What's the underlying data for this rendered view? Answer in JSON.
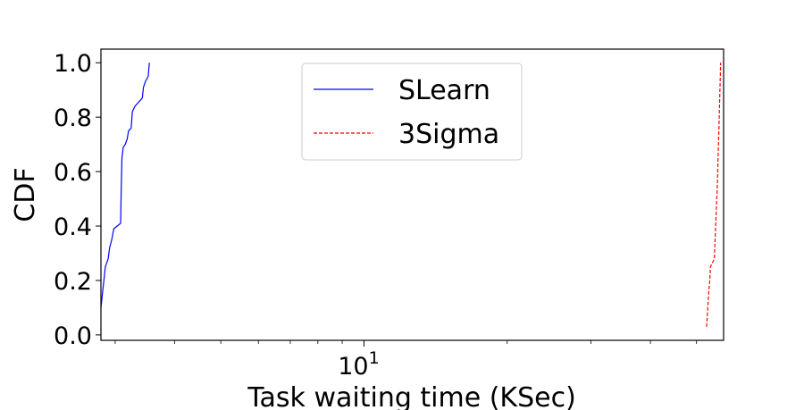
{
  "chart_data": {
    "type": "line",
    "title": "",
    "xlabel": "Task waiting time (KSec)",
    "ylabel": "CDF",
    "xscale": "log",
    "xlim": [
      2.8,
      57
    ],
    "ylim": [
      -0.02,
      1.05
    ],
    "x_ticks": [
      {
        "value": 10,
        "base": "10",
        "exp": "1"
      }
    ],
    "y_ticks": [
      {
        "value": 0.0,
        "label": "0.0"
      },
      {
        "value": 0.2,
        "label": "0.2"
      },
      {
        "value": 0.4,
        "label": "0.4"
      },
      {
        "value": 0.6,
        "label": "0.6"
      },
      {
        "value": 0.8,
        "label": "0.8"
      },
      {
        "value": 1.0,
        "label": "1.0"
      }
    ],
    "grid": false,
    "legend_position": "upper center",
    "series": [
      {
        "name": "SLearn",
        "color": "#0000ff",
        "style": "solid",
        "points": [
          [
            2.8,
            0.1
          ],
          [
            2.82,
            0.15
          ],
          [
            2.84,
            0.2
          ],
          [
            2.86,
            0.25
          ],
          [
            2.9,
            0.28
          ],
          [
            2.92,
            0.32
          ],
          [
            2.95,
            0.35
          ],
          [
            2.98,
            0.39
          ],
          [
            3.03,
            0.4
          ],
          [
            3.08,
            0.41
          ],
          [
            3.09,
            0.55
          ],
          [
            3.1,
            0.65
          ],
          [
            3.12,
            0.69
          ],
          [
            3.15,
            0.7
          ],
          [
            3.18,
            0.72
          ],
          [
            3.2,
            0.75
          ],
          [
            3.24,
            0.76
          ],
          [
            3.26,
            0.82
          ],
          [
            3.3,
            0.84
          ],
          [
            3.34,
            0.85
          ],
          [
            3.38,
            0.86
          ],
          [
            3.42,
            0.87
          ],
          [
            3.44,
            0.91
          ],
          [
            3.47,
            0.93
          ],
          [
            3.52,
            0.95
          ],
          [
            3.54,
            1.0
          ]
        ]
      },
      {
        "name": "3Sigma",
        "color": "#ff0000",
        "style": "dashed",
        "points": [
          [
            52.5,
            0.03
          ],
          [
            52.8,
            0.1
          ],
          [
            53.0,
            0.15
          ],
          [
            53.3,
            0.2
          ],
          [
            53.5,
            0.25
          ],
          [
            53.8,
            0.26
          ],
          [
            54.2,
            0.27
          ],
          [
            54.5,
            0.28
          ],
          [
            54.7,
            0.35
          ],
          [
            55.0,
            0.45
          ],
          [
            55.3,
            0.55
          ],
          [
            55.5,
            0.65
          ],
          [
            55.8,
            0.8
          ],
          [
            56.0,
            0.9
          ],
          [
            56.2,
            1.0
          ]
        ]
      }
    ]
  }
}
